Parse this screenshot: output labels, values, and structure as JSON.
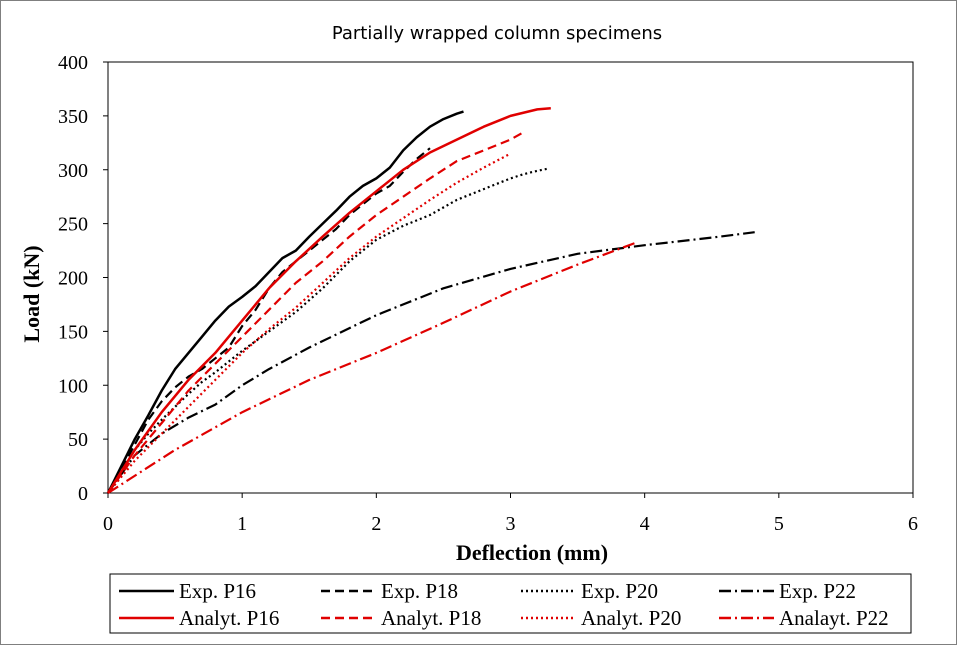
{
  "chart_data": {
    "type": "line",
    "title": "Partially wrapped column specimens",
    "xlabel": "Deflection  (mm)",
    "ylabel": "Load (kN)",
    "xlim": [
      0,
      6
    ],
    "ylim": [
      0,
      400
    ],
    "xticks": [
      0,
      1,
      2,
      3,
      4,
      5,
      6
    ],
    "yticks": [
      0,
      50,
      100,
      150,
      200,
      250,
      300,
      350,
      400
    ],
    "grid": false,
    "legend_position": "bottom",
    "series": [
      {
        "name": "Exp. P16",
        "color": "#000000",
        "dash": "solid",
        "x": [
          0,
          0.1,
          0.2,
          0.3,
          0.4,
          0.5,
          0.6,
          0.7,
          0.8,
          0.9,
          1.0,
          1.1,
          1.2,
          1.3,
          1.4,
          1.5,
          1.6,
          1.7,
          1.8,
          1.9,
          2.0,
          2.1,
          2.2,
          2.3,
          2.4,
          2.5,
          2.6,
          2.65
        ],
        "y": [
          0,
          25,
          50,
          72,
          95,
          115,
          130,
          145,
          160,
          173,
          182,
          192,
          205,
          218,
          225,
          238,
          250,
          262,
          275,
          285,
          292,
          302,
          318,
          330,
          340,
          347,
          352,
          354
        ]
      },
      {
        "name": "Exp. P18",
        "color": "#000000",
        "dash": "dashed",
        "x": [
          0,
          0.1,
          0.2,
          0.3,
          0.4,
          0.5,
          0.6,
          0.7,
          0.8,
          0.9,
          1.0,
          1.1,
          1.2,
          1.3,
          1.4,
          1.5,
          1.6,
          1.7,
          1.8,
          1.9,
          2.0,
          2.1,
          2.2,
          2.3,
          2.4
        ],
        "y": [
          0,
          22,
          45,
          68,
          85,
          98,
          108,
          115,
          125,
          135,
          155,
          170,
          190,
          205,
          215,
          225,
          235,
          245,
          258,
          268,
          278,
          285,
          298,
          310,
          320
        ]
      },
      {
        "name": "Exp. P20",
        "color": "#000000",
        "dash": "dotted",
        "x": [
          0,
          0.1,
          0.2,
          0.3,
          0.4,
          0.5,
          0.6,
          0.7,
          0.8,
          0.9,
          1.0,
          1.2,
          1.4,
          1.6,
          1.8,
          2.0,
          2.2,
          2.4,
          2.6,
          2.8,
          3.0,
          3.1,
          3.2,
          3.28
        ],
        "y": [
          0,
          20,
          40,
          55,
          68,
          80,
          92,
          103,
          112,
          122,
          132,
          150,
          168,
          190,
          215,
          235,
          248,
          258,
          272,
          282,
          292,
          296,
          299,
          301
        ]
      },
      {
        "name": "Exp. P22",
        "color": "#000000",
        "dash": "dash-dot",
        "x": [
          0,
          0.2,
          0.4,
          0.6,
          0.8,
          1.0,
          1.2,
          1.5,
          2.0,
          2.5,
          3.0,
          3.5,
          4.0,
          4.5,
          4.82
        ],
        "y": [
          0,
          35,
          55,
          70,
          82,
          100,
          115,
          135,
          165,
          190,
          208,
          222,
          230,
          237,
          242
        ]
      },
      {
        "name": "Analyt. P16",
        "color": "#e00000",
        "dash": "solid",
        "x": [
          0,
          0.2,
          0.4,
          0.6,
          0.8,
          1.0,
          1.2,
          1.4,
          1.6,
          1.8,
          2.0,
          2.2,
          2.4,
          2.6,
          2.8,
          3.0,
          3.2,
          3.3
        ],
        "y": [
          0,
          40,
          75,
          105,
          130,
          160,
          190,
          215,
          238,
          260,
          280,
          300,
          316,
          328,
          340,
          350,
          356,
          357
        ]
      },
      {
        "name": "Analyt. P18",
        "color": "#e00000",
        "dash": "dashed",
        "x": [
          0,
          0.2,
          0.4,
          0.6,
          0.8,
          1.0,
          1.2,
          1.4,
          1.6,
          1.8,
          2.0,
          2.2,
          2.4,
          2.6,
          2.8,
          3.0,
          3.1
        ],
        "y": [
          0,
          35,
          65,
          95,
          120,
          145,
          170,
          195,
          215,
          238,
          258,
          275,
          292,
          308,
          318,
          328,
          335
        ]
      },
      {
        "name": "Analyt. P20",
        "color": "#e00000",
        "dash": "dotted",
        "x": [
          0,
          0.2,
          0.4,
          0.6,
          0.8,
          1.0,
          1.2,
          1.4,
          1.6,
          1.8,
          2.0,
          2.2,
          2.4,
          2.6,
          2.8,
          3.0
        ],
        "y": [
          0,
          30,
          55,
          80,
          105,
          130,
          152,
          172,
          195,
          218,
          238,
          255,
          272,
          288,
          302,
          315
        ]
      },
      {
        "name": "Analayt. P22",
        "color": "#e00000",
        "dash": "dash-dot",
        "x": [
          0,
          0.5,
          1.0,
          1.5,
          2.0,
          2.5,
          3.0,
          3.5,
          3.95
        ],
        "y": [
          0,
          40,
          75,
          105,
          130,
          158,
          187,
          212,
          233
        ]
      }
    ]
  }
}
